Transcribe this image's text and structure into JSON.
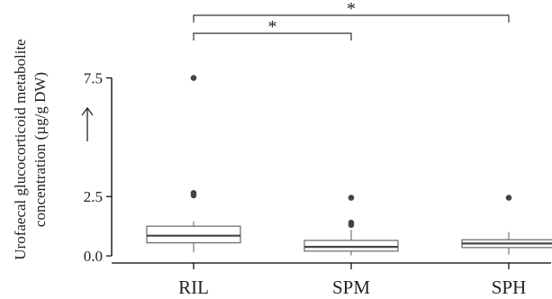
{
  "chart_data": {
    "type": "box",
    "ylabel_line1": "Urofaecal glucocorticoid metabolite",
    "ylabel_line2": "concentration (µg/g DW)",
    "ylim": [
      -0.3,
      7.9
    ],
    "yticks": [
      0.0,
      2.5,
      7.5
    ],
    "ytick_labels": [
      "0.0",
      "2.5",
      "7.5"
    ],
    "categories": [
      "RIL",
      "SPM",
      "SPH"
    ],
    "boxes": [
      {
        "name": "RIL",
        "q1": 0.55,
        "median": 0.85,
        "q3": 1.25,
        "whisker_low": 0.15,
        "whisker_high": 1.45,
        "outliers": [
          2.55,
          2.65,
          7.5
        ]
      },
      {
        "name": "SPM",
        "q1": 0.2,
        "median": 0.38,
        "q3": 0.65,
        "whisker_low": 0.02,
        "whisker_high": 1.1,
        "outliers": [
          1.3,
          1.4,
          2.45
        ]
      },
      {
        "name": "SPH",
        "q1": 0.35,
        "median": 0.52,
        "q3": 0.68,
        "whisker_low": 0.05,
        "whisker_high": 1.0,
        "outliers": [
          2.45
        ]
      }
    ],
    "significance": [
      {
        "from": "RIL",
        "to": "SPM",
        "label": "*"
      },
      {
        "from": "RIL",
        "to": "SPH",
        "label": "*"
      }
    ],
    "grid": false
  }
}
